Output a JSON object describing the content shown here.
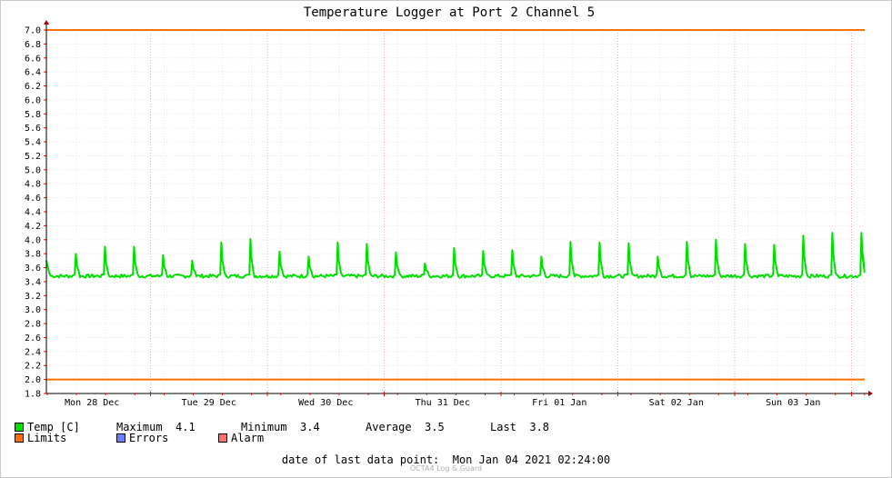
{
  "chart_data": {
    "type": "line",
    "title": "Temperature Logger at Port 2 Channel 5",
    "ylim": [
      1.8,
      7.0
    ],
    "y_ticks": [
      "7.0",
      "6.8",
      "6.6",
      "6.4",
      "6.2",
      "6.0",
      "5.8",
      "5.6",
      "5.4",
      "5.2",
      "5.0",
      "4.8",
      "4.6",
      "4.4",
      "4.2",
      "4.0",
      "3.8",
      "3.6",
      "3.4",
      "3.2",
      "3.0",
      "2.8",
      "2.6",
      "2.4",
      "2.2",
      "2.0",
      "1.8"
    ],
    "x_labels": [
      "Mon 28 Dec",
      "Tue 29 Dec",
      "Wed 30 Dec",
      "Thu 31 Dec",
      "Fri 01 Jan",
      "Sat 02 Jan",
      "Sun 03 Jan"
    ],
    "limits": [
      7.0,
      2.0
    ],
    "series": [
      {
        "name": "Temp [C]",
        "color": "#00e000",
        "baseline": 3.48,
        "start_value": 3.7,
        "end_value": 3.8,
        "spike_peaks": [
          3.8,
          3.9,
          3.9,
          3.78,
          3.7,
          3.96,
          4.01,
          3.83,
          3.76,
          3.96,
          3.94,
          3.82,
          3.66,
          3.88,
          3.84,
          3.85,
          3.76,
          3.97,
          3.96,
          3.95,
          3.76,
          3.97,
          4.0,
          3.94,
          3.93,
          4.06,
          4.1,
          4.1
        ]
      }
    ],
    "grid": true
  },
  "legend": {
    "temp_label": "Temp [C]",
    "limits_label": "Limits",
    "errors_label": "Errors",
    "alarm_label": "Alarm",
    "maximum_label": "Maximum",
    "maximum_value": "4.1",
    "minimum_label": "Minimum",
    "minimum_value": "3.4",
    "average_label": "Average",
    "average_value": "3.5",
    "last_label": "Last",
    "last_value": "3.8",
    "colors": {
      "temp": "#00e000",
      "limits": "#ff7000",
      "errors": "#7080ff",
      "alarm": "#ff7070"
    }
  },
  "footer": {
    "label": "date of last data point:",
    "value": "Mon Jan 04 2021 02:24:00",
    "credit": "OCTA4 Log & Guard"
  }
}
